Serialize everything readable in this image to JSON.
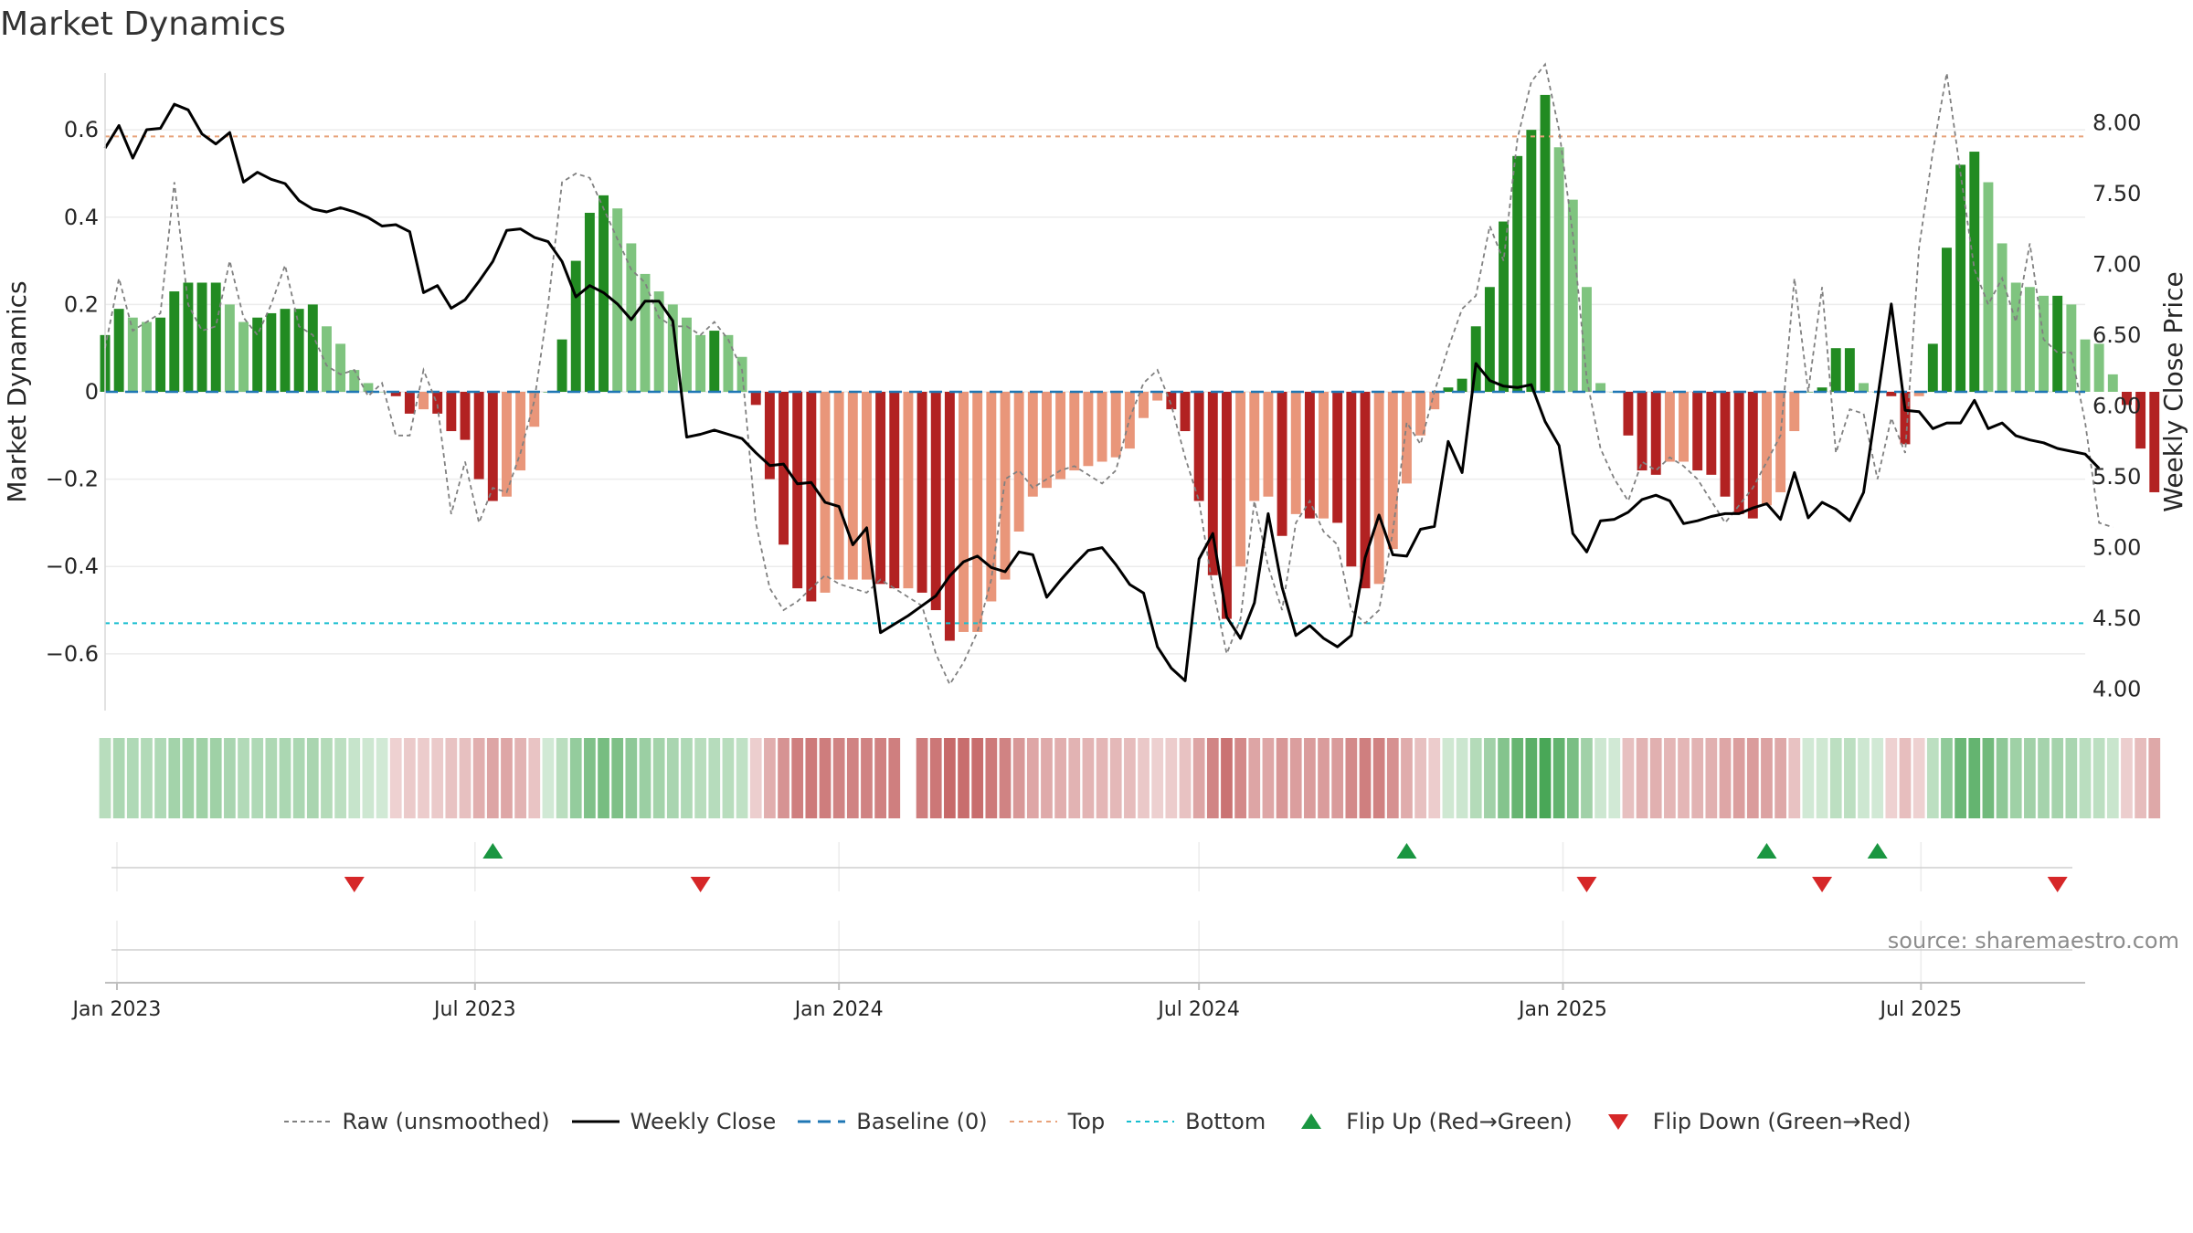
{
  "title": "Market Dynamics",
  "source": "source: sharemaestro.com",
  "colors": {
    "pos_strong": "#228b22",
    "pos_weak": "#7fc47f",
    "neg_strong": "#b22222",
    "neg_weak": "#e9967a",
    "close": "#000000",
    "raw": "#808080",
    "baseline": "#1f77b4",
    "top": "#e8a27a",
    "bottom": "#17becf",
    "flip_up": "#1a9641",
    "flip_down": "#d62728"
  },
  "legend": [
    {
      "key": "raw",
      "label": "Raw (unsmoothed)"
    },
    {
      "key": "close",
      "label": "Weekly Close"
    },
    {
      "key": "baseline",
      "label": "Baseline (0)"
    },
    {
      "key": "top",
      "label": "Top"
    },
    {
      "key": "bottom",
      "label": "Bottom"
    },
    {
      "key": "flip_up",
      "label": "Flip Up (Red→Green)"
    },
    {
      "key": "flip_down",
      "label": "Flip Down (Green→Red)"
    }
  ],
  "chart_data": {
    "type": "bar",
    "ylabel": "Market Dynamics",
    "y2label": "Weekly Close Price",
    "ylim": [
      -0.73,
      0.73
    ],
    "y2lim": [
      3.85,
      8.35
    ],
    "yticks": [
      -0.6,
      -0.4,
      -0.2,
      0,
      0.2,
      0.4,
      0.6
    ],
    "ytick_labels": [
      "−0.6",
      "−0.4",
      "−0.2",
      "0",
      "0.2",
      "0.4",
      "0.6"
    ],
    "y2ticks": [
      4.0,
      4.5,
      5.0,
      5.5,
      6.0,
      6.5,
      7.0,
      7.5,
      8.0
    ],
    "y2tick_labels": [
      "4.00",
      "4.50",
      "5.00",
      "5.50",
      "6.00",
      "6.50",
      "7.00",
      "7.50",
      "8.00"
    ],
    "xlim": [
      "2022-12-26",
      "2025-09-22"
    ],
    "xticks": [
      "2023-01-01",
      "2023-07-01",
      "2024-01-01",
      "2024-07-01",
      "2025-01-01",
      "2025-07-01"
    ],
    "xtick_labels": [
      "Jan 2023",
      "Jul 2023",
      "Jan 2024",
      "Jul 2024",
      "Jan 2025",
      "Jul 2025"
    ],
    "start_week": "2022-12-26",
    "top_level": 0.585,
    "bottom_level": -0.53,
    "grid": true,
    "legend_position": "bottom-center",
    "series": [
      {
        "name": "Market Dynamics",
        "values": [
          0.13,
          0.19,
          0.17,
          0.16,
          0.17,
          0.23,
          0.25,
          0.25,
          0.25,
          0.2,
          0.16,
          0.17,
          0.18,
          0.19,
          0.19,
          0.2,
          0.15,
          0.11,
          0.05,
          0.02,
          0.0,
          -0.01,
          -0.05,
          -0.04,
          -0.05,
          -0.09,
          -0.11,
          -0.2,
          -0.25,
          -0.24,
          -0.18,
          -0.08,
          0.0,
          0.12,
          0.3,
          0.41,
          0.45,
          0.42,
          0.34,
          0.27,
          0.23,
          0.2,
          0.17,
          0.13,
          0.14,
          0.13,
          0.08,
          -0.03,
          -0.2,
          -0.35,
          -0.45,
          -0.48,
          -0.46,
          -0.43,
          -0.43,
          -0.43,
          -0.44,
          -0.45,
          -0.45,
          -0.46,
          -0.5,
          -0.57,
          -0.55,
          -0.55,
          -0.48,
          -0.43,
          -0.32,
          -0.24,
          -0.22,
          -0.2,
          -0.18,
          -0.17,
          -0.16,
          -0.15,
          -0.13,
          -0.06,
          -0.02,
          -0.04,
          -0.09,
          -0.25,
          -0.42,
          -0.52,
          -0.4,
          -0.25,
          -0.24,
          -0.33,
          -0.28,
          -0.29,
          -0.29,
          -0.3,
          -0.4,
          -0.45,
          -0.44,
          -0.36,
          -0.21,
          -0.1,
          -0.04,
          0.01,
          0.03,
          0.15,
          0.24,
          0.39,
          0.54,
          0.6,
          0.68,
          0.56,
          0.44,
          0.24,
          0.02,
          0.0,
          -0.1,
          -0.18,
          -0.19,
          -0.16,
          -0.16,
          -0.18,
          -0.19,
          -0.24,
          -0.28,
          -0.29,
          -0.26,
          -0.23,
          -0.09,
          0.0,
          0.01,
          0.1,
          0.1,
          0.02,
          0.0,
          -0.01,
          -0.12,
          -0.01,
          0.11,
          0.33,
          0.52,
          0.55,
          0.48,
          0.34,
          0.25,
          0.24,
          0.22,
          0.22,
          0.2,
          0.12,
          0.11,
          0.04,
          -0.03,
          -0.13,
          -0.23
        ]
      },
      {
        "name": "Raw (unsmoothed)",
        "values": [
          0.1,
          0.26,
          0.14,
          0.16,
          0.18,
          0.48,
          0.2,
          0.14,
          0.15,
          0.3,
          0.17,
          0.13,
          0.2,
          0.29,
          0.15,
          0.13,
          0.06,
          0.04,
          0.05,
          -0.01,
          0.02,
          -0.1,
          -0.1,
          0.05,
          -0.03,
          -0.28,
          -0.16,
          -0.3,
          -0.22,
          -0.23,
          -0.14,
          -0.02,
          0.2,
          0.48,
          0.5,
          0.49,
          0.42,
          0.35,
          0.28,
          0.25,
          0.17,
          0.15,
          0.15,
          0.13,
          0.16,
          0.12,
          0.05,
          -0.3,
          -0.45,
          -0.5,
          -0.48,
          -0.45,
          -0.42,
          -0.44,
          -0.45,
          -0.46,
          -0.43,
          -0.45,
          -0.47,
          -0.49,
          -0.6,
          -0.67,
          -0.62,
          -0.55,
          -0.43,
          -0.2,
          -0.18,
          -0.22,
          -0.2,
          -0.18,
          -0.17,
          -0.19,
          -0.21,
          -0.18,
          -0.06,
          0.02,
          0.05,
          -0.03,
          -0.15,
          -0.25,
          -0.45,
          -0.6,
          -0.52,
          -0.25,
          -0.4,
          -0.5,
          -0.3,
          -0.25,
          -0.32,
          -0.35,
          -0.5,
          -0.53,
          -0.5,
          -0.32,
          -0.07,
          -0.12,
          0.0,
          0.1,
          0.19,
          0.22,
          0.38,
          0.3,
          0.58,
          0.71,
          0.75,
          0.6,
          0.36,
          0.03,
          -0.13,
          -0.2,
          -0.25,
          -0.16,
          -0.18,
          -0.15,
          -0.17,
          -0.2,
          -0.25,
          -0.3,
          -0.26,
          -0.22,
          -0.16,
          -0.1,
          0.26,
          0.0,
          0.24,
          -0.14,
          -0.04,
          -0.05,
          -0.2,
          -0.06,
          -0.14,
          0.33,
          0.55,
          0.73,
          0.5,
          0.28,
          0.2,
          0.26,
          0.16,
          0.34,
          0.12,
          0.09,
          0.09,
          -0.07,
          -0.3,
          -0.31
        ]
      },
      {
        "name": "Weekly Close",
        "values": [
          7.82,
          7.98,
          7.75,
          7.95,
          7.96,
          8.13,
          8.09,
          7.92,
          7.85,
          7.93,
          7.58,
          7.65,
          7.6,
          7.57,
          7.45,
          7.39,
          7.37,
          7.4,
          7.37,
          7.33,
          7.27,
          7.28,
          7.23,
          6.8,
          6.85,
          6.69,
          6.75,
          6.88,
          7.02,
          7.24,
          7.25,
          7.19,
          7.16,
          7.02,
          6.77,
          6.85,
          6.8,
          6.72,
          6.61,
          6.74,
          6.74,
          6.6,
          5.78,
          5.8,
          5.83,
          5.8,
          5.77,
          5.67,
          5.58,
          5.59,
          5.45,
          5.46,
          5.32,
          5.29,
          5.02,
          5.14,
          4.4,
          4.46,
          4.52,
          4.59,
          4.66,
          4.8,
          4.9,
          4.94,
          4.86,
          4.83,
          4.97,
          4.95,
          4.65,
          4.77,
          4.88,
          4.98,
          5.0,
          4.88,
          4.74,
          4.68,
          4.3,
          4.15,
          4.06,
          4.92,
          5.1,
          4.51,
          4.36,
          4.61,
          5.24,
          4.72,
          4.38,
          4.45,
          4.36,
          4.3,
          4.38,
          4.93,
          5.23,
          4.95,
          4.94,
          5.13,
          5.15,
          5.75,
          5.53,
          6.3,
          6.18,
          6.14,
          6.13,
          6.15,
          5.89,
          5.72,
          5.1,
          4.97,
          5.19,
          5.2,
          5.25,
          5.34,
          5.37,
          5.33,
          5.17,
          5.19,
          5.22,
          5.24,
          5.24,
          5.28,
          5.31,
          5.2,
          5.53,
          5.21,
          5.32,
          5.27,
          5.19,
          5.39,
          6.05,
          6.72,
          5.97,
          5.96,
          5.84,
          5.88,
          5.88,
          6.04,
          5.84,
          5.88,
          5.79,
          5.76,
          5.74,
          5.7,
          5.68,
          5.66,
          5.56
        ]
      }
    ],
    "flips_up": [
      "2023-07-10",
      "2024-10-14",
      "2025-04-14",
      "2025-06-09"
    ],
    "flips_down": [
      "2023-05-01",
      "2023-10-23",
      "2025-01-13",
      "2025-05-12",
      "2025-09-08"
    ],
    "strip_gap_week": "2024-02-05"
  }
}
